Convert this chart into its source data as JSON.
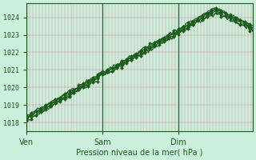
{
  "title": "",
  "xlabel": "Pression niveau de la mer( hPa )",
  "ylabel": "",
  "bg_color": "#cceedd",
  "plot_bg_color": "#cceedd",
  "line_color": "#1a5c1a",
  "marker": "D",
  "markersize": 2.0,
  "linewidth": 0.9,
  "ylim": [
    1017.5,
    1024.8
  ],
  "yticks": [
    1018,
    1019,
    1020,
    1021,
    1022,
    1023,
    1024
  ],
  "day_labels": [
    "Ven",
    "Sam",
    "Dim"
  ],
  "day_positions": [
    0,
    48,
    96
  ],
  "total_points": 144
}
